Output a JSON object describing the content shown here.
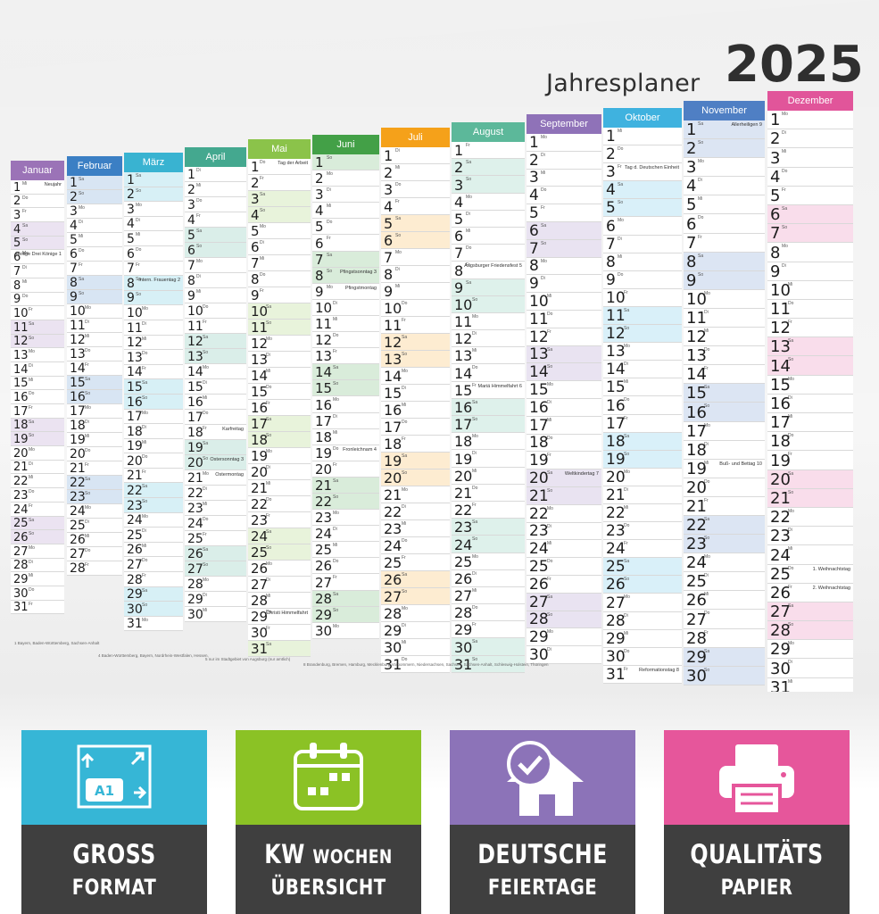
{
  "poster": {
    "title": "Jahresplaner",
    "year": "2025",
    "footnotes": [
      "1 Bayern, Baden-Württemberg, Sachsen-Anhalt",
      "4 Baden-Württemberg, Bayern, Nordrhein-Westfalen, Hessen,",
      "5 nur im Stadtgebiet von Augsburg (nur amtlich)",
      "8 Brandenburg, Bremen, Hamburg, Mecklenburg-Vorpommern, Niedersachsen, Sachsen, Sachsen-Anhalt, Schleswig-Holstein, Thüringen",
      "Alle Angaben ohne Gewähr",
      "Art.-Nr.: JP25-M3",
      "www.cnoco.de",
      "cnoco"
    ]
  },
  "months": [
    {
      "name": "Januar",
      "color": "#9b73b7"
    },
    {
      "name": "Februar",
      "color": "#3b7fc4"
    },
    {
      "name": "März",
      "color": "#39b3d1"
    },
    {
      "name": "April",
      "color": "#44a88f"
    },
    {
      "name": "Mai",
      "color": "#8bc34a"
    },
    {
      "name": "Juni",
      "color": "#43a047"
    },
    {
      "name": "Juli",
      "color": "#f5a11a"
    },
    {
      "name": "August",
      "color": "#5cb89a"
    },
    {
      "name": "September",
      "color": "#8f72b8"
    },
    {
      "name": "Oktober",
      "color": "#3fb2df"
    },
    {
      "name": "November",
      "color": "#4f7fc4"
    },
    {
      "name": "Dezember",
      "color": "#e1559a"
    }
  ],
  "notes": {
    "Januar-1": "Neujahr",
    "Januar-6": "Heilige Drei Könige 1",
    "März-8": "Intern. Frauentag 2",
    "April-18": "Karfreitag",
    "April-20": "Ostersonntag 3",
    "April-21": "Ostermontag",
    "Mai-1": "Tag der Arbeit",
    "Mai-29": "Christi Himmelfahrt",
    "Juni-8": "Pfingstsonntag 3",
    "Juni-9": "Pfingstmontag",
    "Juni-19": "Fronleichnam 4",
    "August-8": "Augsburger Friedensfest 5",
    "August-15": "Mariä Himmelfahrt 6",
    "September-20": "Weltkindertag 7",
    "Oktober-3": "Tag d. Deutschen Einheit",
    "Oktober-31": "Reformationstag 8",
    "November-1": "Allerheiligen 9",
    "November-19": "Buß- und Bettag 10",
    "Dezember-25": "1. Weihnachtstag",
    "Dezember-26": "2. Weihnachtstag"
  },
  "features": [
    {
      "line1": "GROSS",
      "line2": "FORMAT",
      "color": "#36b6d6",
      "icon": "a1-format-icon",
      "icon_label": "A1"
    },
    {
      "line1": "KW",
      "line1b": "WOCHEN",
      "line2": "ÜBERSICHT",
      "color": "#8bc225",
      "icon": "calendar-icon"
    },
    {
      "line1": "DEUTSCHE",
      "line2": "FEIERTAGE",
      "color": "#8c73b8",
      "icon": "house-check-icon"
    },
    {
      "line1": "QUALITÄTS",
      "line2": "PAPIER",
      "color": "#e6569b",
      "icon": "printer-icon"
    }
  ]
}
